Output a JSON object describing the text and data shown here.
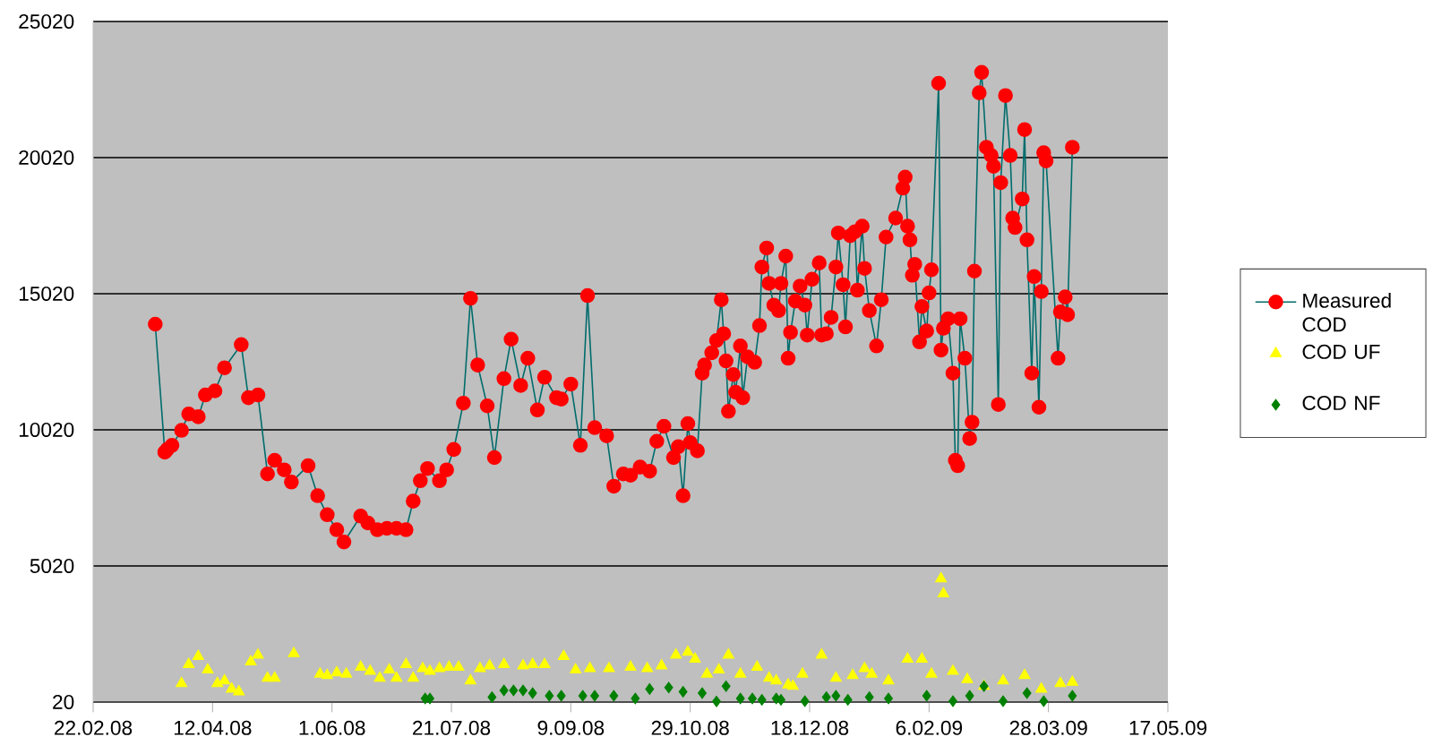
{
  "chart_data": {
    "type": "line",
    "xlim": [
      "2008-02-22",
      "2009-05-17"
    ],
    "xticks": [
      {
        "value": "2008-02-22",
        "label": "22.02.08"
      },
      {
        "value": "2008-04-12",
        "label": "12.04.08"
      },
      {
        "value": "2008-06-01",
        "label": "1.06.08"
      },
      {
        "value": "2008-07-21",
        "label": "21.07.08"
      },
      {
        "value": "2008-09-09",
        "label": "9.09.08"
      },
      {
        "value": "2008-10-29",
        "label": "29.10.08"
      },
      {
        "value": "2008-12-18",
        "label": "18.12.08"
      },
      {
        "value": "2009-02-06",
        "label": "6.02.09"
      },
      {
        "value": "2009-03-28",
        "label": "28.03.09"
      },
      {
        "value": "2009-05-17",
        "label": "17.05.09"
      }
    ],
    "ylim": [
      20,
      25020
    ],
    "yticks": [
      20,
      5020,
      10020,
      15020,
      20020,
      25020
    ],
    "grid": "y",
    "legend": "right",
    "series": [
      {
        "name": "Measured COD",
        "marker": "circle",
        "color": "#ff0000",
        "x": [
          "2008-03-19",
          "2008-03-23",
          "2008-03-24",
          "2008-03-26",
          "2008-03-30",
          "2008-04-02",
          "2008-04-06",
          "2008-04-09",
          "2008-04-13",
          "2008-04-17",
          "2008-04-24",
          "2008-04-27",
          "2008-05-01",
          "2008-05-05",
          "2008-05-08",
          "2008-05-12",
          "2008-05-15",
          "2008-05-22",
          "2008-05-26",
          "2008-05-30",
          "2008-06-03",
          "2008-06-06",
          "2008-06-13",
          "2008-06-16",
          "2008-06-20",
          "2008-06-24",
          "2008-06-28",
          "2008-07-02",
          "2008-07-05",
          "2008-07-08",
          "2008-07-11",
          "2008-07-16",
          "2008-07-19",
          "2008-07-22",
          "2008-07-26",
          "2008-07-29",
          "2008-08-01",
          "2008-08-05",
          "2008-08-08",
          "2008-08-12",
          "2008-08-15",
          "2008-08-19",
          "2008-08-22",
          "2008-08-26",
          "2008-08-29",
          "2008-09-03",
          "2008-09-05",
          "2008-09-09",
          "2008-09-13",
          "2008-09-16",
          "2008-09-19",
          "2008-09-24",
          "2008-09-27",
          "2008-10-01",
          "2008-10-04",
          "2008-10-08",
          "2008-10-12",
          "2008-10-15",
          "2008-10-18",
          "2008-10-22",
          "2008-10-24",
          "2008-10-26",
          "2008-10-28",
          "2008-10-29",
          "2008-11-01",
          "2008-11-03",
          "2008-11-04",
          "2008-11-07",
          "2008-11-09",
          "2008-11-11",
          "2008-11-12",
          "2008-11-13",
          "2008-11-14",
          "2008-11-16",
          "2008-11-17",
          "2008-11-19",
          "2008-11-20",
          "2008-11-22",
          "2008-11-25",
          "2008-11-27",
          "2008-11-28",
          "2008-11-30",
          "2008-12-01",
          "2008-12-03",
          "2008-12-05",
          "2008-12-06",
          "2008-12-08",
          "2008-12-09",
          "2008-12-10",
          "2008-12-12",
          "2008-12-14",
          "2008-12-16",
          "2008-12-17",
          "2008-12-19",
          "2008-12-22",
          "2008-12-23",
          "2008-12-25",
          "2008-12-27",
          "2008-12-29",
          "2008-12-30",
          "2009-01-01",
          "2009-01-02",
          "2009-01-04",
          "2009-01-06",
          "2009-01-07",
          "2009-01-09",
          "2009-01-10",
          "2009-01-12",
          "2009-01-15",
          "2009-01-17",
          "2009-01-19",
          "2009-01-23",
          "2009-01-26",
          "2009-01-27",
          "2009-01-28",
          "2009-01-29",
          "2009-01-30",
          "2009-01-31",
          "2009-02-02",
          "2009-02-03",
          "2009-02-05",
          "2009-02-06",
          "2009-02-07",
          "2009-02-10",
          "2009-02-11",
          "2009-02-12",
          "2009-02-14",
          "2009-02-16",
          "2009-02-17",
          "2009-02-18",
          "2009-02-19",
          "2009-02-21",
          "2009-02-23",
          "2009-02-24",
          "2009-02-25",
          "2009-02-27",
          "2009-02-28",
          "2009-03-02",
          "2009-03-04",
          "2009-03-05",
          "2009-03-07",
          "2009-03-08",
          "2009-03-10",
          "2009-03-12",
          "2009-03-13",
          "2009-03-14",
          "2009-03-17",
          "2009-03-18",
          "2009-03-19",
          "2009-03-21",
          "2009-03-22",
          "2009-03-24",
          "2009-03-25",
          "2009-03-26",
          "2009-03-27",
          "2009-04-01",
          "2009-04-02",
          "2009-04-04",
          "2009-04-05",
          "2009-04-07"
        ],
        "values": [
          13900,
          9200,
          9300,
          9450,
          10000,
          10600,
          10500,
          11300,
          11450,
          12300,
          13150,
          11200,
          11300,
          8400,
          8900,
          8550,
          8100,
          8700,
          7600,
          6900,
          6350,
          5900,
          6850,
          6600,
          6350,
          6400,
          6400,
          6350,
          7400,
          8150,
          8600,
          8150,
          8550,
          9300,
          11000,
          14850,
          12400,
          10900,
          9000,
          11900,
          13350,
          11650,
          12650,
          10750,
          11950,
          11200,
          11150,
          11700,
          9450,
          14950,
          10100,
          9800,
          7950,
          8400,
          8350,
          8650,
          8500,
          9600,
          10150,
          9000,
          9400,
          7600,
          10250,
          9550,
          9250,
          12100,
          12400,
          12850,
          13300,
          14800,
          13550,
          12550,
          10700,
          12050,
          11400,
          13100,
          11200,
          12700,
          12500,
          13850,
          16000,
          16700,
          15400,
          14600,
          14400,
          15400,
          16400,
          12650,
          13600,
          14750,
          15300,
          14600,
          13500,
          15550,
          16150,
          13500,
          13550,
          14150,
          16000,
          17250,
          15350,
          13800,
          17150,
          17300,
          15150,
          17500,
          15950,
          14400,
          13100,
          14800,
          17100,
          17800,
          18900,
          19300,
          17500,
          17000,
          15700,
          16100,
          13250,
          14550,
          13650,
          15050,
          15900,
          22750,
          12950,
          13750,
          14100,
          12100,
          8900,
          8700,
          14100,
          12650,
          9700,
          10300,
          15850,
          22400,
          23150,
          20400,
          20100,
          19700,
          10950,
          19100,
          22300,
          20100,
          17800,
          17450,
          18500,
          21050,
          17000,
          12100,
          15650,
          10850,
          15100,
          20200,
          19900,
          12650,
          14350,
          14900,
          14250,
          20400
        ]
      },
      {
        "name": "COD UF",
        "type": "scatter",
        "marker": "triangle",
        "color": "#ffff00",
        "x": [
          "2008-03-30",
          "2008-04-02",
          "2008-04-06",
          "2008-04-10",
          "2008-04-14",
          "2008-04-17",
          "2008-04-20",
          "2008-04-23",
          "2008-04-28",
          "2008-05-01",
          "2008-05-05",
          "2008-05-08",
          "2008-05-16",
          "2008-05-27",
          "2008-05-30",
          "2008-06-03",
          "2008-06-07",
          "2008-06-13",
          "2008-06-17",
          "2008-06-21",
          "2008-06-25",
          "2008-06-28",
          "2008-07-02",
          "2008-07-05",
          "2008-07-09",
          "2008-07-12",
          "2008-07-16",
          "2008-07-20",
          "2008-07-24",
          "2008-07-29",
          "2008-08-02",
          "2008-08-06",
          "2008-08-12",
          "2008-08-20",
          "2008-08-24",
          "2008-08-29",
          "2008-09-06",
          "2008-09-11",
          "2008-09-17",
          "2008-09-25",
          "2008-10-04",
          "2008-10-11",
          "2008-10-17",
          "2008-10-23",
          "2008-10-28",
          "2008-10-31",
          "2008-11-05",
          "2008-11-10",
          "2008-11-14",
          "2008-11-19",
          "2008-11-26",
          "2008-12-01",
          "2008-12-04",
          "2008-12-09",
          "2008-12-11",
          "2008-12-15",
          "2008-12-23",
          "2008-12-29",
          "2009-01-05",
          "2009-01-10",
          "2009-01-13",
          "2009-01-20",
          "2009-01-28",
          "2009-02-03",
          "2009-02-07",
          "2009-02-11",
          "2009-02-12",
          "2009-02-16",
          "2009-02-22",
          "2009-03-01",
          "2009-03-09",
          "2009-03-18",
          "2009-03-25",
          "2009-04-02",
          "2009-04-07"
        ],
        "values": [
          700,
          1400,
          1700,
          1200,
          700,
          800,
          500,
          400,
          1500,
          1750,
          900,
          900,
          1800,
          1050,
          1000,
          1100,
          1050,
          1300,
          1150,
          900,
          1200,
          900,
          1400,
          900,
          1250,
          1150,
          1250,
          1300,
          1300,
          800,
          1250,
          1350,
          1400,
          1350,
          1400,
          1400,
          1700,
          1200,
          1250,
          1250,
          1300,
          1250,
          1350,
          1750,
          1850,
          1600,
          1050,
          1200,
          1750,
          1050,
          1300,
          900,
          800,
          650,
          600,
          1050,
          1750,
          900,
          1000,
          1250,
          1050,
          800,
          1600,
          1600,
          1050,
          4550,
          4000,
          1150,
          850,
          600,
          800,
          1000,
          500,
          700,
          750
        ]
      },
      {
        "name": "COD NF",
        "type": "scatter",
        "marker": "diamond",
        "color": "#008000",
        "x": [
          "2008-07-10",
          "2008-07-12",
          "2008-08-07",
          "2008-08-12",
          "2008-08-16",
          "2008-08-20",
          "2008-08-24",
          "2008-08-31",
          "2008-09-05",
          "2008-09-14",
          "2008-09-19",
          "2008-09-27",
          "2008-10-06",
          "2008-10-12",
          "2008-10-20",
          "2008-10-26",
          "2008-11-03",
          "2008-11-09",
          "2008-11-13",
          "2008-11-19",
          "2008-11-24",
          "2008-11-28",
          "2008-12-04",
          "2008-12-06",
          "2008-12-16",
          "2008-12-25",
          "2008-12-29",
          "2009-01-03",
          "2009-01-12",
          "2009-01-20",
          "2009-02-05",
          "2009-02-16",
          "2009-02-23",
          "2009-03-01",
          "2009-03-09",
          "2009-03-19",
          "2009-03-26",
          "2009-04-07"
        ],
        "values": [
          150,
          150,
          200,
          450,
          450,
          450,
          350,
          250,
          250,
          250,
          250,
          250,
          150,
          500,
          550,
          400,
          350,
          40,
          600,
          150,
          150,
          100,
          150,
          100,
          50,
          200,
          250,
          100,
          200,
          150,
          250,
          50,
          250,
          600,
          50,
          350,
          50,
          250
        ]
      }
    ]
  }
}
